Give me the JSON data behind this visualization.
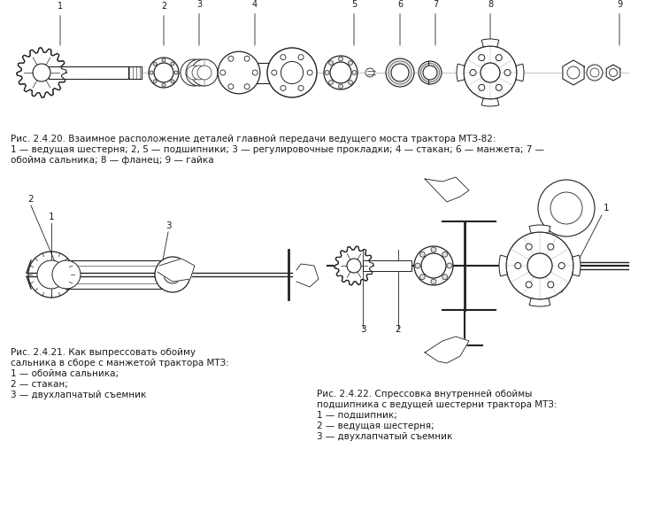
{
  "bg_color": "#ffffff",
  "fig_width": 7.3,
  "fig_height": 5.77,
  "dpi": 100,
  "caption1": "Рис. 2.4.20. Взаимное расположение деталей главной передачи ведущего моста трактора МТЗ-82:",
  "caption1_line2": "1 — ведущая шестерня; 2, 5 — подшипники; 3 — регулировочные прокладки; 4 — стакан; 6 — манжета; 7 —",
  "caption1_line3": "обойма сальника; 8 — фланец; 9 — гайка",
  "caption2_title": "Рис. 2.4.21. Как выпрессовать обойму",
  "caption2_line2": "сальника в сборе с манжетой трактора МТЗ:",
  "caption2_items": [
    "1 — обойма сальника;",
    "2 — стакан;",
    "3 — двухлапчатый съемник"
  ],
  "caption3_title": "Рис. 2.4.22. Спрессовка внутренней обоймы",
  "caption3_line2": "подшипника с ведущей шестерни трактора МТЗ:",
  "caption3_items": [
    "1 — подшипник;",
    "2 — ведущая шестерня;",
    "3 — двухлапчатый съемник"
  ],
  "text_color": "#1a1a1a",
  "line_color": "#222222",
  "font_size_caption": 7.5,
  "font_size_label": 7.5
}
